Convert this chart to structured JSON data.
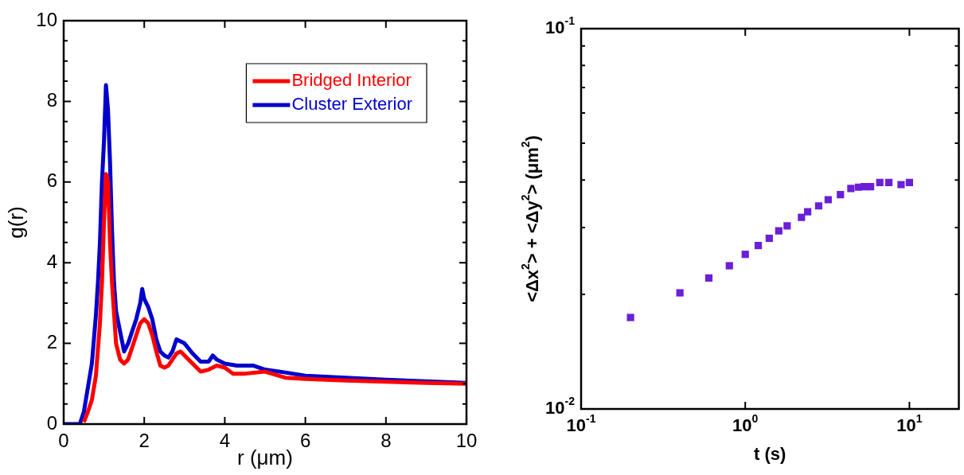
{
  "chart_data": [
    {
      "type": "line",
      "xlabel": "r (μm)",
      "ylabel": "g(r)",
      "xlim": [
        0,
        10
      ],
      "ylim": [
        0,
        10
      ],
      "xticks": [
        0,
        2,
        4,
        6,
        8,
        10
      ],
      "yticks": [
        0,
        {
          "value": 0.5,
          "label": null
        },
        {
          "value": 1,
          "label": null
        },
        {
          "value": 1.5,
          "label": null
        },
        2,
        {
          "value": 2.5,
          "label": null
        },
        {
          "value": 3,
          "label": null
        },
        {
          "value": 3.5,
          "label": null
        },
        4,
        {
          "value": 4.5,
          "label": null
        },
        {
          "value": 5,
          "label": null
        },
        {
          "value": 5.5,
          "label": null
        },
        6,
        {
          "value": 6.5,
          "label": null
        },
        {
          "value": 7,
          "label": null
        },
        {
          "value": 7.5,
          "label": null
        },
        8,
        {
          "value": 8.5,
          "label": null
        },
        {
          "value": 9,
          "label": null
        },
        {
          "value": 9.5,
          "label": null
        },
        10
      ],
      "legend": "top right",
      "marker": "none",
      "line_style": "solid",
      "series": [
        {
          "name": "Bridged Interior",
          "color": "#ff0000",
          "x": [
            0.5,
            0.6,
            0.7,
            0.8,
            0.9,
            0.95,
            1.0,
            1.05,
            1.1,
            1.15,
            1.2,
            1.3,
            1.4,
            1.5,
            1.6,
            1.7,
            1.8,
            1.9,
            2.0,
            2.1,
            2.2,
            2.3,
            2.4,
            2.5,
            2.6,
            2.7,
            2.8,
            2.9,
            3.0,
            3.2,
            3.4,
            3.6,
            3.8,
            4.0,
            4.2,
            4.5,
            5.0,
            5.5,
            6.0,
            7.0,
            8.0,
            9.0,
            10
          ],
          "values": [
            0.05,
            0.3,
            0.6,
            1.2,
            2.5,
            3.5,
            5.0,
            6.2,
            6.0,
            4.5,
            3.5,
            2.0,
            1.6,
            1.5,
            1.6,
            1.9,
            2.2,
            2.5,
            2.6,
            2.5,
            2.2,
            1.8,
            1.45,
            1.4,
            1.45,
            1.6,
            1.75,
            1.8,
            1.7,
            1.5,
            1.3,
            1.35,
            1.45,
            1.4,
            1.25,
            1.25,
            1.3,
            1.15,
            1.12,
            1.08,
            1.05,
            1.02,
            1.0
          ]
        },
        {
          "name": "Cluster Exterior",
          "color": "#0000cc",
          "x": [
            0,
            0.4,
            0.5,
            0.55,
            0.6,
            0.7,
            0.8,
            0.85,
            0.9,
            0.95,
            1.0,
            1.05,
            1.1,
            1.15,
            1.2,
            1.25,
            1.3,
            1.4,
            1.5,
            1.6,
            1.7,
            1.8,
            1.9,
            1.95,
            2.0,
            2.1,
            2.2,
            2.3,
            2.4,
            2.5,
            2.6,
            2.7,
            2.8,
            2.9,
            3.0,
            3.2,
            3.4,
            3.6,
            3.7,
            3.8,
            4.0,
            4.3,
            4.7,
            5.0,
            5.5,
            6.0,
            7.0,
            8.0,
            9.0,
            10
          ],
          "values": [
            0,
            0,
            0.3,
            0.6,
            0.9,
            1.5,
            2.7,
            3.5,
            4.5,
            6.0,
            7.0,
            8.4,
            7.8,
            6.5,
            4.8,
            3.5,
            2.8,
            2.3,
            1.8,
            2.0,
            2.3,
            2.6,
            3.0,
            3.35,
            3.1,
            2.9,
            2.6,
            2.1,
            1.8,
            1.7,
            1.65,
            1.8,
            2.1,
            2.05,
            2.0,
            1.75,
            1.55,
            1.55,
            1.7,
            1.6,
            1.5,
            1.45,
            1.45,
            1.35,
            1.28,
            1.2,
            1.15,
            1.1,
            1.06,
            1.02
          ]
        }
      ]
    },
    {
      "type": "scatter",
      "log": "xy",
      "xlabel": "t (s)",
      "ylabel": "<Δx$^{2}$> + <Δy$^{2}$> (μm$^{2}$)",
      "xlim": [
        0.1,
        20
      ],
      "ylim": [
        0.01,
        0.1
      ],
      "xticks": [
        {
          "value": 0.1,
          "label": "10$^{-1}$"
        },
        {
          "value": 1,
          "label": "10$^{0}$"
        },
        {
          "value": 10,
          "label": "10$^{1}$"
        }
      ],
      "yticks": [
        {
          "value": 0.01,
          "label": "10$^{-2}$"
        },
        {
          "value": 0.02,
          "label": null
        },
        {
          "value": 0.03,
          "label": null
        },
        {
          "value": 0.04,
          "label": null
        },
        {
          "value": 0.05,
          "label": null
        },
        {
          "value": 0.06,
          "label": null
        },
        {
          "value": 0.07,
          "label": null
        },
        {
          "value": 0.08,
          "label": null
        },
        {
          "value": 0.09,
          "label": null
        },
        {
          "value": 0.1,
          "label": "10$^{-1}$"
        }
      ],
      "marker": "square",
      "series": [
        {
          "color": "#6b1fd8",
          "x": [
            0.2,
            0.4,
            0.6,
            0.8,
            1.0,
            1.2,
            1.4,
            1.6,
            1.8,
            2.2,
            2.4,
            2.8,
            3.2,
            3.8,
            4.4,
            4.9,
            5.3,
            5.8,
            6.6,
            7.5,
            8.9,
            10
          ],
          "values": [
            0.0174,
            0.0202,
            0.0221,
            0.0238,
            0.0255,
            0.0269,
            0.0281,
            0.0294,
            0.0303,
            0.0319,
            0.033,
            0.0342,
            0.0355,
            0.0366,
            0.038,
            0.0383,
            0.0384,
            0.0384,
            0.0394,
            0.0394,
            0.0389,
            0.0394
          ]
        }
      ]
    }
  ]
}
